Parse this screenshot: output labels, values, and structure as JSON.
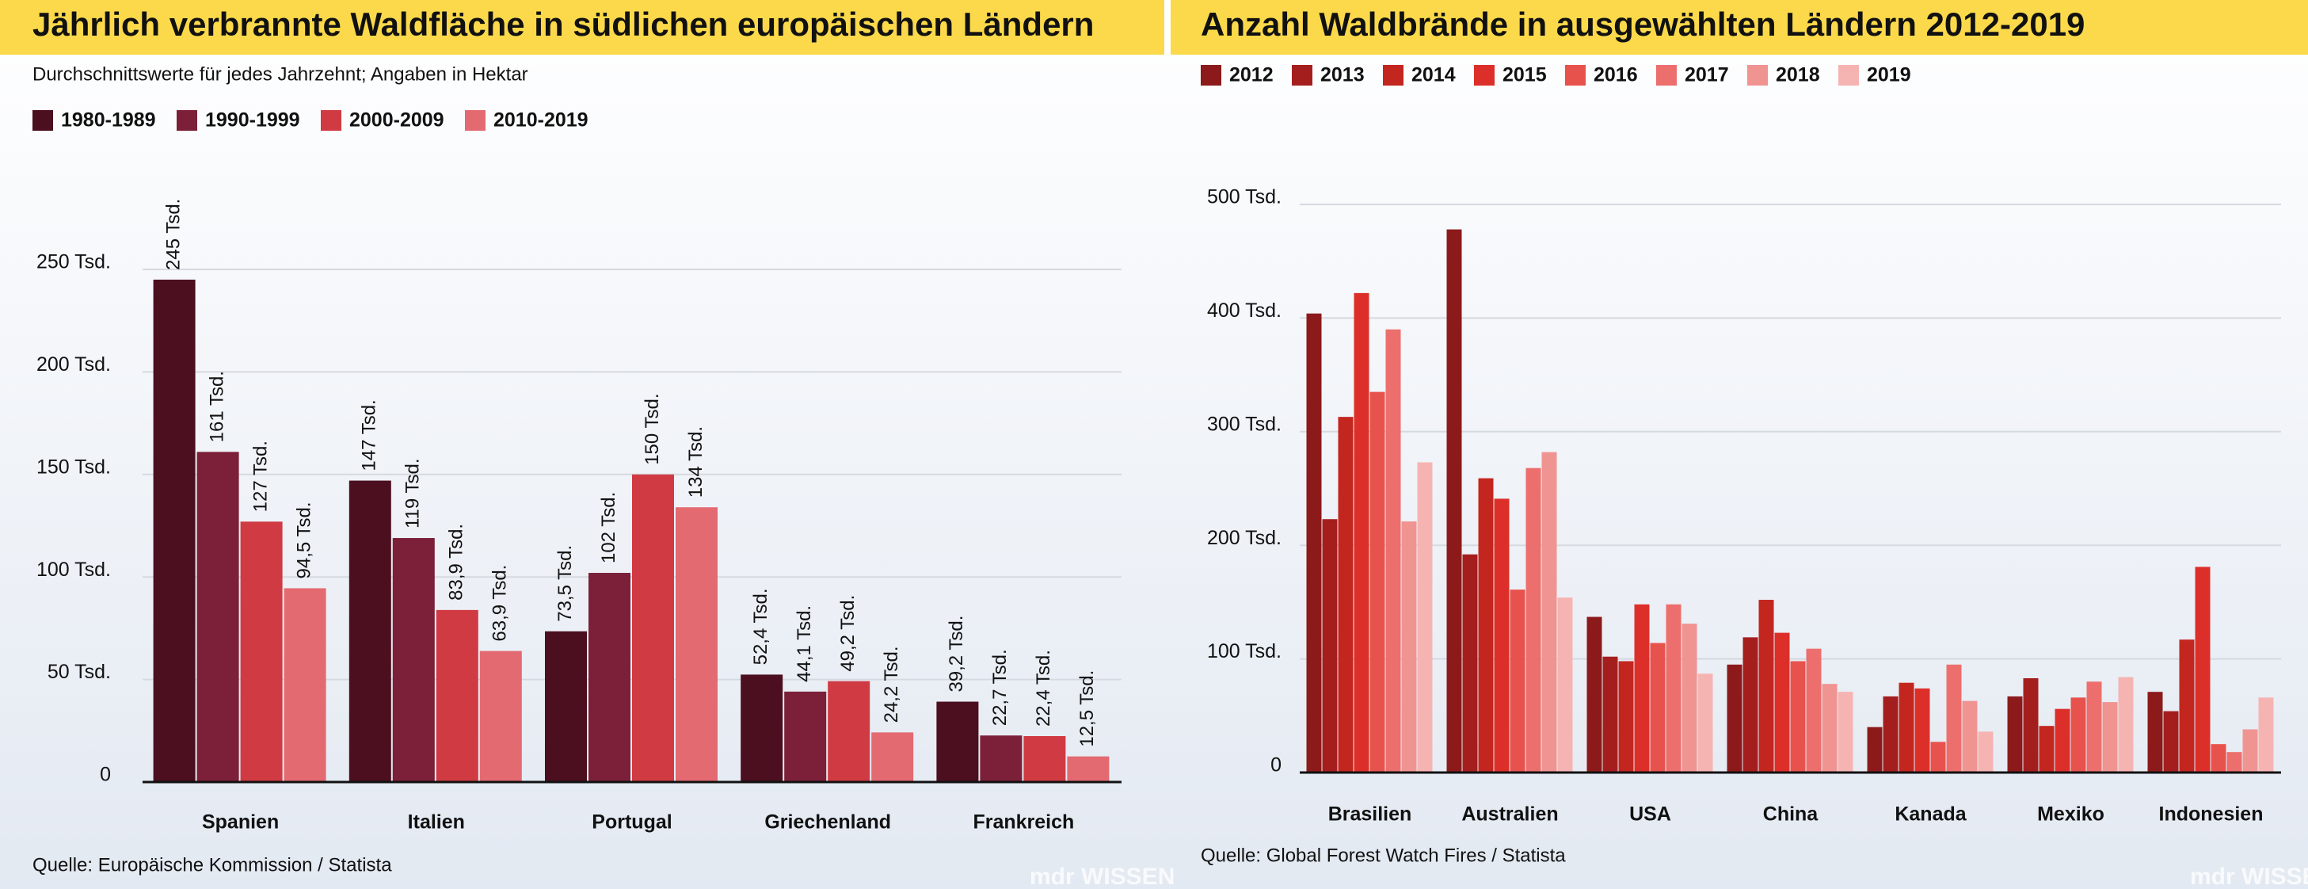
{
  "chart_data": [
    {
      "type": "bar",
      "title": "Jährlich verbrannte Waldfläche in südlichen europäischen Ländern",
      "subtitle": "Durchschnittswerte für jedes Jahrzehnt; Angaben in Hektar",
      "categories": [
        "Spanien",
        "Italien",
        "Portugal",
        "Griechenland",
        "Frankreich"
      ],
      "series": [
        {
          "name": "1980-1989",
          "color": "#4b0f1f",
          "values": [
            245000,
            147000,
            73500,
            52400,
            39200
          ],
          "value_labels": [
            "245 Tsd.",
            "147 Tsd.",
            "73,5 Tsd.",
            "52,4 Tsd.",
            "39,2 Tsd."
          ]
        },
        {
          "name": "1990-1999",
          "color": "#7b2038",
          "values": [
            161000,
            119000,
            102000,
            44100,
            22700
          ],
          "value_labels": [
            "161 Tsd.",
            "119 Tsd.",
            "102 Tsd.",
            "44,1 Tsd.",
            "22,7 Tsd."
          ]
        },
        {
          "name": "2000-2009",
          "color": "#d03a42",
          "values": [
            127000,
            83900,
            150000,
            49200,
            22400
          ],
          "value_labels": [
            "127 Tsd.",
            "83,9 Tsd.",
            "150 Tsd.",
            "49,2 Tsd.",
            "22,4 Tsd."
          ]
        },
        {
          "name": "2010-2019",
          "color": "#e36a71",
          "values": [
            94500,
            63900,
            134000,
            24200,
            12500
          ],
          "value_labels": [
            "94,5 Tsd.",
            "63,9 Tsd.",
            "134 Tsd.",
            "24,2 Tsd.",
            "12,5 Tsd."
          ]
        }
      ],
      "ylim": [
        0,
        250000
      ],
      "yticks": [
        {
          "value": 0,
          "label": "0"
        },
        {
          "value": 50000,
          "label": "50 Tsd."
        },
        {
          "value": 100000,
          "label": "100 Tsd."
        },
        {
          "value": 150000,
          "label": "150 Tsd."
        },
        {
          "value": 200000,
          "label": "200 Tsd."
        },
        {
          "value": 250000,
          "label": "250 Tsd."
        }
      ],
      "grid": true,
      "source": "Quelle: Europäische Kommission / Statista",
      "logo": "mdr WISSEN"
    },
    {
      "type": "bar",
      "title": "Anzahl Waldbrände in ausgewählten Ländern 2012-2019",
      "categories": [
        "Brasilien",
        "Australien",
        "USA",
        "China",
        "Kanada",
        "Mexiko",
        "Indonesien"
      ],
      "series": [
        {
          "name": "2012",
          "color": "#8c1a1a",
          "values": [
            404000,
            478000,
            137000,
            95000,
            40000,
            67000,
            71000
          ]
        },
        {
          "name": "2013",
          "color": "#a51e1e",
          "values": [
            223000,
            192000,
            102000,
            119000,
            67000,
            83000,
            54000
          ]
        },
        {
          "name": "2014",
          "color": "#c2261f",
          "values": [
            313000,
            259000,
            98000,
            152000,
            79000,
            41000,
            117000
          ]
        },
        {
          "name": "2015",
          "color": "#dd2f2a",
          "values": [
            422000,
            241000,
            148000,
            123000,
            74000,
            56000,
            181000
          ]
        },
        {
          "name": "2016",
          "color": "#e8524d",
          "values": [
            335000,
            161000,
            114000,
            98000,
            27000,
            66000,
            25000
          ]
        },
        {
          "name": "2017",
          "color": "#ec6f6d",
          "values": [
            390000,
            268000,
            148000,
            109000,
            95000,
            80000,
            18000
          ]
        },
        {
          "name": "2018",
          "color": "#f09492",
          "values": [
            221000,
            282000,
            131000,
            78000,
            63000,
            62000,
            38000
          ]
        },
        {
          "name": "2019",
          "color": "#f5b4b2",
          "values": [
            273000,
            154000,
            87000,
            71000,
            36000,
            84000,
            66000
          ]
        }
      ],
      "ylim": [
        0,
        500000
      ],
      "yticks": [
        {
          "value": 0,
          "label": "0"
        },
        {
          "value": 100000,
          "label": "100 Tsd."
        },
        {
          "value": 200000,
          "label": "200 Tsd."
        },
        {
          "value": 300000,
          "label": "300 Tsd."
        },
        {
          "value": 400000,
          "label": "400 Tsd."
        },
        {
          "value": 500000,
          "label": "500 Tsd."
        }
      ],
      "grid": true,
      "source": "Quelle: Global Forest Watch Fires / Statista",
      "logo": "mdr WISSEN"
    }
  ]
}
